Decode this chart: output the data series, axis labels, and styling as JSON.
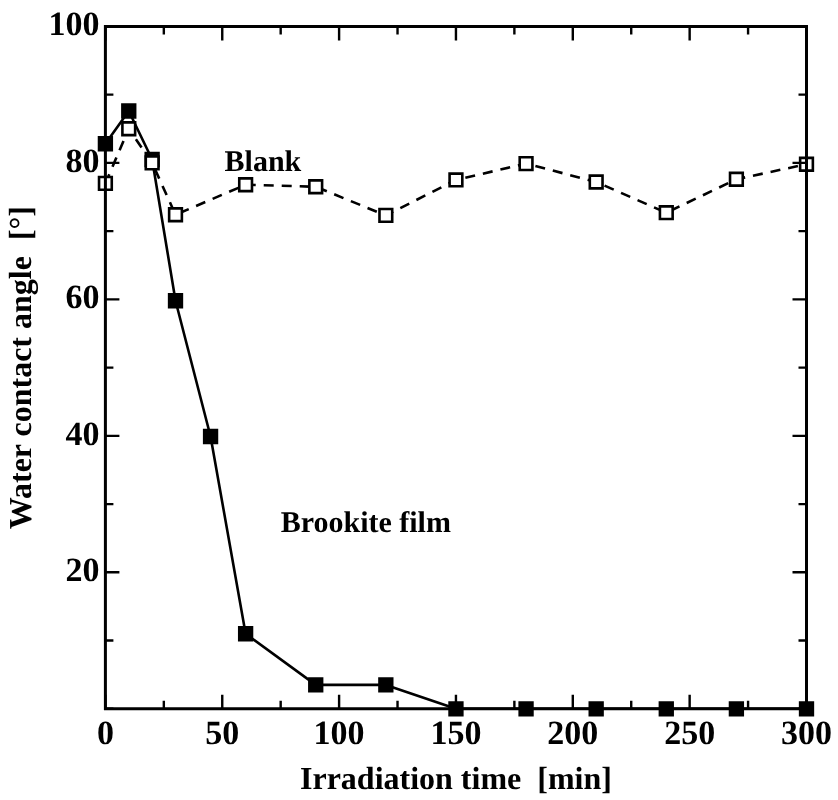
{
  "chart_data": {
    "type": "line",
    "xlabel": "Irradiation time  [min]",
    "ylabel": "Water contact angle  [°]",
    "xlim": [
      0,
      300
    ],
    "ylim": [
      0,
      100
    ],
    "xticks": [
      0,
      {
        "value": 25,
        "label": null
      },
      50,
      {
        "value": 75,
        "label": null
      },
      100,
      {
        "value": 125,
        "label": null
      },
      150,
      {
        "value": 175,
        "label": null
      },
      200,
      {
        "value": 225,
        "label": null
      },
      250,
      {
        "value": 275,
        "label": null
      },
      300
    ],
    "yticks": [
      {
        "value": 0,
        "label": null
      },
      {
        "value": 10,
        "label": null
      },
      20,
      {
        "value": 30,
        "label": null
      },
      40,
      {
        "value": 50,
        "label": null
      },
      60,
      {
        "value": 70,
        "label": null
      },
      80,
      {
        "value": 90,
        "label": null
      },
      100
    ],
    "grid": false,
    "legend": false,
    "series": [
      {
        "name": "Blank",
        "color": "#000000",
        "marker": "square",
        "line_style": "dashed",
        "x": [
          0,
          10,
          20,
          30,
          60,
          90,
          120,
          150,
          180,
          210,
          240,
          270,
          300
        ],
        "values": [
          77,
          85,
          80,
          72.4,
          76.8,
          76.5,
          72.3,
          77.5,
          79.9,
          77.2,
          72.7,
          77.6,
          79.8
        ]
      },
      {
        "name": "Brookite film",
        "color": "#000000",
        "marker": "square",
        "line_style": "solid",
        "x": [
          0,
          10,
          20,
          30,
          45,
          60,
          90,
          120,
          150,
          180,
          210,
          240,
          270,
          300
        ],
        "values": [
          82.8,
          87.6,
          80.5,
          59.8,
          39.9,
          11,
          3.5,
          3.5,
          0,
          0,
          0,
          0,
          0,
          0
        ]
      }
    ]
  }
}
